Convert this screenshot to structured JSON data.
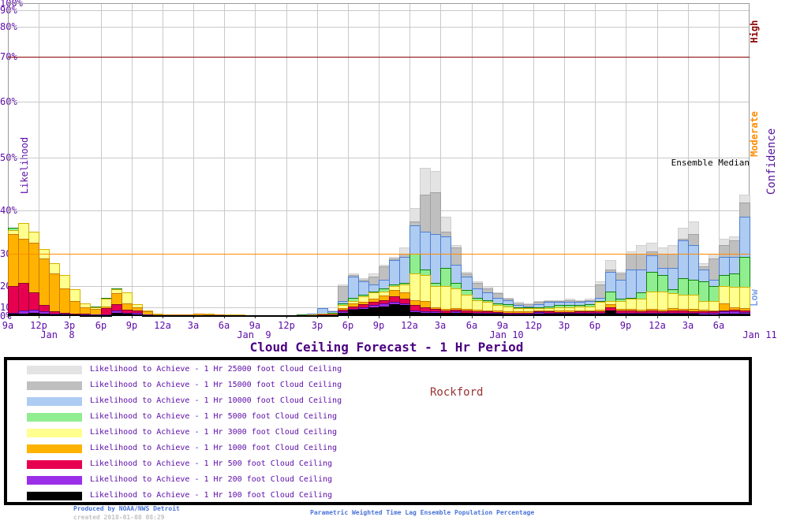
{
  "title": "Cloud Ceiling Forecast -  1 Hr Period",
  "station_label": "Rockford",
  "median_annotation": "Ensemble Median",
  "y_axis": {
    "label": "Likelihood",
    "tick_labels": [
      "0%",
      "10%",
      "20%",
      "30%",
      "40%",
      "50%",
      "60%",
      "70%",
      "80%",
      "90%",
      "100%"
    ]
  },
  "x_axis": {
    "tick_labels": [
      "9a",
      "12p",
      "3p",
      "6p",
      "9p",
      "12a",
      "3a",
      "6a",
      "9a",
      "12p",
      "3p",
      "6p",
      "9p",
      "12a",
      "3a",
      "6a",
      "9a",
      "12p",
      "3p",
      "6p",
      "9p",
      "12a",
      "3a",
      "6a"
    ],
    "date_labels": [
      "Jan  8",
      "Jan  9",
      "Jan 10",
      "Jan 11"
    ]
  },
  "confidence_axis": {
    "label": "Confidence",
    "high": "High",
    "moderate": "Moderate",
    "low": "Low",
    "high_color": "#8b0000",
    "moderate_color": "#ff8c00",
    "low_color": "#7aa2e8"
  },
  "footer": {
    "produced_by": "Produced by NOAA/NWS Detroit",
    "created": "created 2018-01-08 08:29",
    "caption": "Parametric Weighted Time Lag Ensemble Population Percentage"
  },
  "chart_data": {
    "type": "bar",
    "mode": "overlaid cumulative likelihood bars, one bar per hour, higher thresholds drawn behind lower thresholds",
    "x_span": "72 hourly bars from 9a Jan 8 through 8a Jan 11",
    "ylabel": "Likelihood",
    "ylim": [
      0,
      100
    ],
    "y_scale": "nonlinear - compressed near 0% and 100%, stretched near 50%",
    "grid": "on",
    "reference_lines": [
      {
        "value": 30,
        "color": "#ff8c00",
        "meaning": "Moderate confidence threshold"
      },
      {
        "value": 70,
        "color": "#8b0000",
        "meaning": "High confidence threshold"
      }
    ],
    "series": [
      {
        "name": "25000 ft",
        "legend": "Likelihood to Achieve -  1 Hr 25000 foot Cloud Ceiling",
        "fill": "#e3e3e3",
        "border": "#cfcfcf",
        "values": [
          36,
          37,
          35,
          31,
          27,
          23.5,
          18.5,
          12,
          10.5,
          14.5,
          19,
          17,
          11.5,
          6,
          2.5,
          2,
          1.8,
          2,
          2.8,
          2.5,
          2,
          1.5,
          1.5,
          1.2,
          1.2,
          1.2,
          1.2,
          1.2,
          1.5,
          2.5,
          10,
          6,
          20.5,
          24,
          22.5,
          24,
          26.5,
          29,
          31.5,
          40.5,
          48,
          47.5,
          38.5,
          32,
          24.5,
          21.5,
          20,
          17,
          14.5,
          12.5,
          12,
          13,
          13.5,
          13.5,
          14,
          13.5,
          14,
          21.5,
          28,
          24.5,
          30.5,
          32,
          32.5,
          31.5,
          32,
          36,
          37.5,
          27,
          30,
          33.5,
          34,
          43
        ]
      },
      {
        "name": "15000 ft",
        "legend": "Likelihood to Achieve -  1 Hr 15000 foot Cloud Ceiling",
        "fill": "#bfbfbf",
        "border": "#a2a2a2",
        "values": [
          36,
          37,
          35,
          31,
          27,
          23.5,
          18.5,
          12,
          10.5,
          14.5,
          19,
          17,
          11.5,
          6,
          2.5,
          2,
          1.8,
          2,
          2.8,
          2.5,
          2,
          1.5,
          1.5,
          1.2,
          1.2,
          1.2,
          1.2,
          1.2,
          1.5,
          2.5,
          9.5,
          5.5,
          20,
          23.5,
          22,
          23,
          26,
          28.5,
          30,
          37.5,
          43,
          43.5,
          35,
          31.5,
          24,
          21,
          19,
          16.5,
          14,
          12,
          11.5,
          12.5,
          13,
          13,
          13.5,
          13,
          13.5,
          20.5,
          25,
          24,
          30,
          30,
          30.5,
          30,
          30,
          33.5,
          34.5,
          26,
          28.5,
          32,
          33,
          41.5
        ]
      },
      {
        "name": "10000 ft",
        "legend": "Likelihood to Achieve -  1 Hr 10000 foot Cloud Ceiling",
        "fill": "#aecbf2",
        "border": "#4f7fd0",
        "values": [
          36,
          37,
          35,
          31,
          27,
          23.5,
          18.5,
          12,
          10.5,
          14.5,
          19,
          17,
          11.5,
          6,
          2.5,
          2,
          1.8,
          2,
          2.8,
          2.5,
          2,
          1.5,
          1.5,
          1.2,
          1.2,
          1.2,
          1.2,
          1.2,
          1.5,
          2.5,
          9,
          5,
          13,
          23,
          21.5,
          20.5,
          22,
          28,
          29,
          36.5,
          35,
          34.5,
          34,
          26.5,
          23,
          19,
          17,
          14.5,
          13.5,
          11,
          10.5,
          11.5,
          12.5,
          12.5,
          12.5,
          12.5,
          13,
          14.5,
          24.5,
          22,
          25,
          25,
          29.5,
          25.5,
          25.5,
          33,
          32,
          25,
          22,
          29,
          29,
          38.5
        ]
      },
      {
        "name": "5000 ft",
        "legend": "Likelihood to Achieve -  1 Hr 5000 foot Cloud Ceiling",
        "fill": "#90ee90",
        "border": "#0e7f0e",
        "values": [
          36,
          37,
          35,
          31,
          27,
          23.5,
          18.5,
          12,
          10.5,
          14.5,
          19,
          17,
          11.5,
          6,
          2.5,
          2,
          1.8,
          2,
          2.8,
          2.5,
          2,
          1.5,
          1.5,
          1.2,
          1.2,
          1.2,
          1.2,
          1.2,
          1.5,
          2.2,
          3,
          4,
          12,
          14.5,
          16,
          17.5,
          19,
          20.5,
          21,
          30,
          25,
          21,
          25.5,
          21,
          18,
          14.5,
          13.5,
          12,
          11.5,
          10,
          10,
          10,
          10.5,
          11,
          11,
          11,
          11.5,
          13,
          17.5,
          14,
          14.5,
          17,
          24.5,
          23.5,
          18.5,
          22.5,
          22,
          21.5,
          20,
          23.5,
          24,
          29
        ]
      },
      {
        "name": "3000 ft",
        "legend": "Likelihood to Achieve -  1 Hr 3000 foot Cloud Ceiling",
        "fill": "#ffff8f",
        "border": "#d2b100",
        "values": [
          35.5,
          37,
          35,
          31,
          27,
          23.5,
          18.5,
          12,
          10,
          14,
          18.5,
          17,
          11.5,
          6,
          2.5,
          2,
          1.8,
          2,
          2.8,
          2.5,
          2,
          1.5,
          1.5,
          1.2,
          1.2,
          1.2,
          1.2,
          1.2,
          1.2,
          1.5,
          2.5,
          3,
          11,
          13,
          15,
          17,
          17.5,
          20,
          20.5,
          24,
          23.5,
          20,
          20,
          19,
          16,
          13.5,
          12.5,
          11,
          10.5,
          9.5,
          9,
          9,
          9.5,
          10,
          10,
          10.5,
          10.5,
          12.5,
          13,
          13,
          14,
          14,
          17.5,
          17.5,
          16.5,
          16,
          16,
          13,
          13,
          20,
          19.5,
          19.5
        ]
      },
      {
        "name": "1000 ft",
        "legend": "Likelihood to Achieve -  1 Hr 1000 foot Cloud Ceiling",
        "fill": "#ffb300",
        "border": "#c87a00",
        "values": [
          34.5,
          33.5,
          32.5,
          28.5,
          24,
          19,
          13,
          10,
          8,
          10.5,
          16.5,
          12,
          10,
          5,
          2,
          1.8,
          1.5,
          1.8,
          2.5,
          2.2,
          1.8,
          1.2,
          1.2,
          1,
          1,
          1,
          1,
          1,
          1,
          1,
          2,
          2,
          9,
          12,
          12.5,
          14,
          15.5,
          18,
          17,
          13.5,
          13,
          10,
          8,
          9,
          8,
          7,
          6.5,
          6,
          5.5,
          5,
          5,
          6.5,
          6.5,
          6,
          6,
          6.5,
          6.5,
          7,
          11.5,
          8,
          8,
          7,
          8,
          7,
          9,
          8.5,
          8,
          7,
          6.5,
          12,
          10,
          9.5
        ]
      },
      {
        "name": "500 ft",
        "legend": "Likelihood to Achieve -  1 Hr 500 foot Cloud Ceiling",
        "fill": "#e80050",
        "border": "#8c002e",
        "values": [
          20,
          21,
          17,
          11,
          5.5,
          4,
          3,
          2.5,
          2,
          9,
          11.5,
          7,
          6,
          2,
          1,
          0.8,
          0.8,
          0.8,
          0.8,
          0.8,
          0.8,
          0.8,
          0.8,
          0.8,
          0.8,
          0.8,
          0.8,
          0.8,
          0.8,
          0.8,
          1.5,
          1.5,
          7,
          10.5,
          11.5,
          12.5,
          13.5,
          15,
          14,
          11,
          10,
          8.5,
          6,
          7,
          6,
          5.5,
          5,
          4.5,
          4,
          4,
          3.5,
          5.5,
          5,
          4.5,
          4.5,
          5,
          5,
          5,
          10,
          6,
          6,
          5,
          6,
          5.5,
          6,
          6,
          5,
          5,
          5,
          6.5,
          7,
          6
        ]
      },
      {
        "name": "200 ft",
        "legend": "Likelihood to Achieve -  1 Hr 200 foot Cloud Ceiling",
        "fill": "#9b2fe8",
        "border": "#560a8c",
        "values": [
          4,
          6,
          7.5,
          5,
          3,
          2.5,
          2,
          1.5,
          1.5,
          2,
          6,
          4,
          4,
          1.5,
          0.8,
          0.5,
          0.5,
          0.5,
          0.5,
          0.5,
          0.5,
          0.8,
          0.8,
          0.8,
          0.8,
          0.8,
          0.8,
          0.8,
          0.8,
          0.8,
          1,
          1,
          5,
          8.5,
          10,
          11,
          12,
          12.5,
          12,
          6,
          5,
          5,
          4,
          5,
          4,
          4,
          3.5,
          3.2,
          3,
          3,
          2.8,
          4.5,
          4,
          3.5,
          3.5,
          3.5,
          3.5,
          4,
          6.5,
          4,
          4,
          3.5,
          4,
          4,
          4,
          4,
          3.5,
          3.5,
          3.5,
          5,
          5,
          4.5
        ]
      },
      {
        "name": "100 ft",
        "legend": "Likelihood to Achieve -  1 Hr 100 foot Cloud Ceiling",
        "fill": "#000000",
        "border": "#000000",
        "values": [
          2.5,
          3,
          4,
          3,
          2,
          1.5,
          1.5,
          1,
          1,
          1,
          4,
          2.5,
          2,
          1,
          0.5,
          0.5,
          0.5,
          0.5,
          0.5,
          0.5,
          0.5,
          0.8,
          0.8,
          0.8,
          0.8,
          0.8,
          0.8,
          0.8,
          1,
          1,
          0.8,
          0.8,
          4,
          7,
          8.5,
          10,
          10.5,
          11.5,
          11,
          4.5,
          4,
          4,
          3.5,
          4,
          3.5,
          3,
          2.8,
          2.5,
          2.2,
          2,
          2,
          3,
          3,
          2.8,
          2.8,
          2.8,
          2.8,
          3,
          6,
          3,
          3,
          2.5,
          3,
          2.5,
          3,
          3,
          2.5,
          2,
          2,
          3,
          3,
          3
        ]
      }
    ]
  }
}
